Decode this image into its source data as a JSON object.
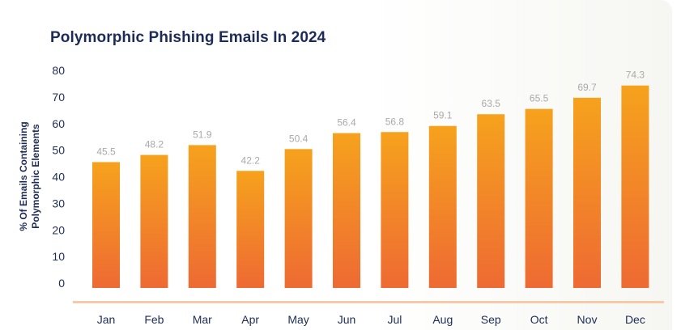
{
  "chart_data": {
    "type": "bar",
    "title": "Polymorphic Phishing Emails In 2024",
    "xlabel": "",
    "ylabel_lines": [
      "% Of Emails Containing",
      "Polymorphic Elements"
    ],
    "categories": [
      "Jan",
      "Feb",
      "Mar",
      "Apr",
      "May",
      "Jun",
      "Jul",
      "Aug",
      "Sep",
      "Oct",
      "Nov",
      "Dec"
    ],
    "values": [
      45.5,
      48.2,
      51.9,
      42.2,
      50.4,
      56.4,
      56.8,
      59.1,
      63.5,
      65.5,
      69.7,
      74.3
    ],
    "data_labels": [
      "45.5",
      "48.2",
      "51.9",
      "42.2",
      "50.4",
      "56.4",
      "56.8",
      "59.1",
      "63.5",
      "65.5",
      "69.7",
      "74.3"
    ],
    "yticks": [
      "0",
      "10",
      "20",
      "30",
      "40",
      "50",
      "60",
      "70",
      "80"
    ],
    "ylim": [
      0,
      80
    ],
    "grid": false,
    "colors": {
      "bar_top": "#f6a21d",
      "bar_bottom": "#ee6a33",
      "baseline": "#f8c9a8",
      "title": "#1d2c57"
    }
  }
}
